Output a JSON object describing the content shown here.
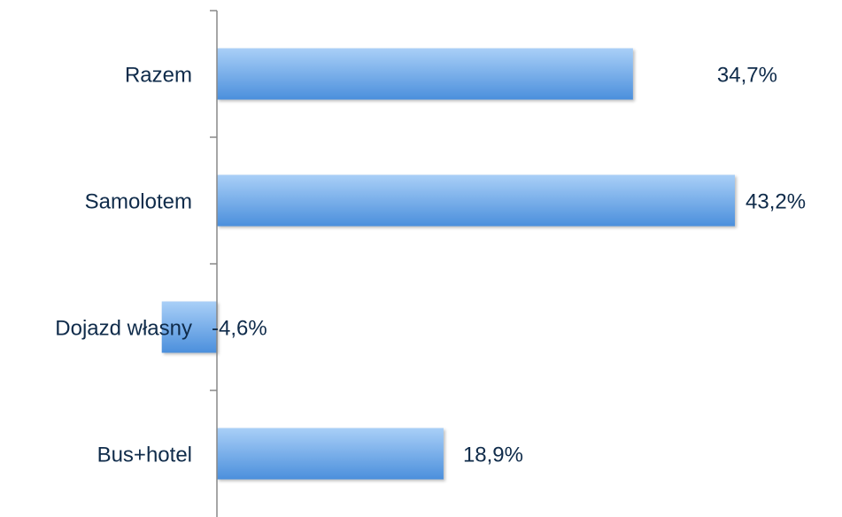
{
  "chart_data": {
    "type": "bar",
    "orientation": "horizontal",
    "title": "",
    "xlabel": "",
    "ylabel": "",
    "categories": [
      "Razem",
      "Samolotem",
      "Dojazd własny",
      "Bus+hotel"
    ],
    "values": [
      34.7,
      43.2,
      -4.6,
      18.9
    ],
    "value_labels": [
      "34,7%",
      "43,2%",
      "-4,6%",
      "18,9%"
    ],
    "xlim": [
      -5,
      43.2
    ],
    "grid": false,
    "legend": "none",
    "colors": {
      "bar_top": "#a9cff7",
      "bar_bottom": "#4b8fdc",
      "text": "#0f2b4a",
      "axis": "#888888"
    }
  }
}
